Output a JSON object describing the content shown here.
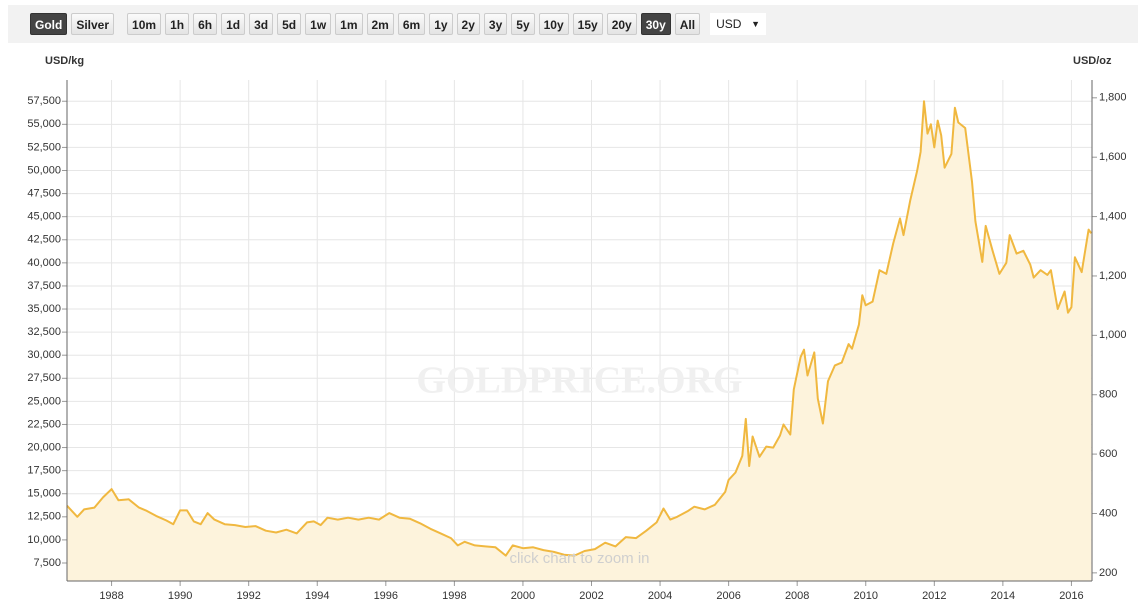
{
  "toolbar": {
    "buttons": [
      {
        "label": "Gold",
        "active": true
      },
      {
        "label": "Silver",
        "active": false
      },
      {
        "label": "10m",
        "active": false
      },
      {
        "label": "1h",
        "active": false
      },
      {
        "label": "6h",
        "active": false
      },
      {
        "label": "1d",
        "active": false
      },
      {
        "label": "3d",
        "active": false
      },
      {
        "label": "5d",
        "active": false
      },
      {
        "label": "1w",
        "active": false
      },
      {
        "label": "1m",
        "active": false
      },
      {
        "label": "2m",
        "active": false
      },
      {
        "label": "6m",
        "active": false
      },
      {
        "label": "1y",
        "active": false
      },
      {
        "label": "2y",
        "active": false
      },
      {
        "label": "3y",
        "active": false
      },
      {
        "label": "5y",
        "active": false
      },
      {
        "label": "10y",
        "active": false
      },
      {
        "label": "15y",
        "active": false
      },
      {
        "label": "20y",
        "active": false
      },
      {
        "label": "30y",
        "active": true
      },
      {
        "label": "All",
        "active": false
      }
    ],
    "currency": "USD"
  },
  "chart_data": {
    "type": "line",
    "ylabel": "USD/kg",
    "y2label": "USD/oz",
    "watermark": "GOLDPRICE.ORG",
    "annotation": "click chart to zoom in",
    "color": "#f0b840",
    "fill": "#fdf3dc",
    "grid": true,
    "xlim": [
      1986.7,
      2016.6
    ],
    "xticks": [
      1988,
      1990,
      1992,
      1994,
      1996,
      1998,
      2000,
      2002,
      2004,
      2006,
      2008,
      2010,
      2012,
      2014,
      2016
    ],
    "ylim": [
      5550,
      59800
    ],
    "yticks": [
      {
        "value": 7500,
        "label": "7,500"
      },
      {
        "value": 10000,
        "label": "10,000"
      },
      {
        "value": 12500,
        "label": "12,500"
      },
      {
        "value": 15000,
        "label": "15,000"
      },
      {
        "value": 17500,
        "label": "17,500"
      },
      {
        "value": 20000,
        "label": "20,000"
      },
      {
        "value": 22500,
        "label": "22,500"
      },
      {
        "value": 25000,
        "label": "25,000"
      },
      {
        "value": 27500,
        "label": "27,500"
      },
      {
        "value": 30000,
        "label": "30,000"
      },
      {
        "value": 32500,
        "label": "32,500"
      },
      {
        "value": 35000,
        "label": "35,000"
      },
      {
        "value": 37500,
        "label": "37,500"
      },
      {
        "value": 40000,
        "label": "40,000"
      },
      {
        "value": 42500,
        "label": "42,500"
      },
      {
        "value": 45000,
        "label": "45,000"
      },
      {
        "value": 47500,
        "label": "47,500"
      },
      {
        "value": 50000,
        "label": "50,000"
      },
      {
        "value": 52500,
        "label": "52,500"
      },
      {
        "value": 55000,
        "label": "55,000"
      },
      {
        "value": 57500,
        "label": "57,500"
      }
    ],
    "y2lim": [
      172.6,
      1860
    ],
    "y2ticks": [
      200,
      400,
      600,
      800,
      {
        "value": 1000,
        "label": "1,000"
      },
      {
        "value": 1200,
        "label": "1,200"
      },
      {
        "value": 1400,
        "label": "1,400"
      },
      {
        "value": 1600,
        "label": "1,600"
      },
      {
        "value": 1800,
        "label": "1,800"
      }
    ],
    "x": [
      1986.7,
      1987.0,
      1987.2,
      1987.5,
      1987.75,
      1988.0,
      1988.2,
      1988.5,
      1988.8,
      1989.0,
      1989.3,
      1989.6,
      1989.8,
      1990.0,
      1990.2,
      1990.4,
      1990.6,
      1990.8,
      1991.0,
      1991.3,
      1991.6,
      1991.9,
      1992.2,
      1992.5,
      1992.8,
      1993.1,
      1993.4,
      1993.7,
      1993.9,
      1994.1,
      1994.3,
      1994.6,
      1994.9,
      1995.2,
      1995.5,
      1995.8,
      1996.1,
      1996.4,
      1996.7,
      1997.0,
      1997.3,
      1997.6,
      1997.9,
      1998.1,
      1998.3,
      1998.6,
      1998.9,
      1999.2,
      1999.5,
      1999.7,
      2000.0,
      2000.3,
      2000.6,
      2000.9,
      2001.2,
      2001.5,
      2001.8,
      2002.1,
      2002.4,
      2002.7,
      2003.0,
      2003.3,
      2003.6,
      2003.9,
      2004.1,
      2004.3,
      2004.5,
      2004.8,
      2005.0,
      2005.3,
      2005.6,
      2005.9,
      2006.0,
      2006.2,
      2006.4,
      2006.5,
      2006.6,
      2006.7,
      2006.9,
      2007.1,
      2007.3,
      2007.5,
      2007.6,
      2007.8,
      2007.9,
      2008.1,
      2008.2,
      2008.3,
      2008.5,
      2008.6,
      2008.75,
      2008.9,
      2009.1,
      2009.3,
      2009.5,
      2009.6,
      2009.8,
      2009.9,
      2010.0,
      2010.2,
      2010.4,
      2010.6,
      2010.8,
      2011.0,
      2011.1,
      2011.3,
      2011.5,
      2011.6,
      2011.7,
      2011.8,
      2011.9,
      2012.0,
      2012.1,
      2012.2,
      2012.3,
      2012.5,
      2012.6,
      2012.7,
      2012.9,
      2013.1,
      2013.2,
      2013.4,
      2013.5,
      2013.7,
      2013.9,
      2014.1,
      2014.2,
      2014.4,
      2014.6,
      2014.8,
      2014.9,
      2015.1,
      2015.3,
      2015.4,
      2015.6,
      2015.8,
      2015.9,
      2016.0,
      2016.1,
      2016.3,
      2016.5,
      2016.58
    ],
    "values": [
      13700,
      12500,
      13300,
      13500,
      14600,
      15500,
      14300,
      14400,
      13500,
      13200,
      12600,
      12100,
      11700,
      13200,
      13200,
      12000,
      11700,
      12900,
      12200,
      11700,
      11600,
      11400,
      11500,
      11000,
      10800,
      11100,
      10700,
      11900,
      12000,
      11600,
      12400,
      12200,
      12400,
      12200,
      12400,
      12200,
      12900,
      12400,
      12300,
      11800,
      11200,
      10700,
      10200,
      9400,
      9800,
      9400,
      9300,
      9200,
      8300,
      9400,
      9100,
      9200,
      8900,
      8700,
      8400,
      8300,
      8800,
      9000,
      9700,
      9300,
      10300,
      10200,
      11000,
      11900,
      13400,
      12200,
      12500,
      13100,
      13600,
      13300,
      13800,
      15200,
      16500,
      17300,
      19100,
      23100,
      18000,
      21200,
      19000,
      20100,
      20000,
      21300,
      22500,
      21400,
      26300,
      29800,
      30600,
      27800,
      30300,
      25300,
      22600,
      27200,
      28900,
      29200,
      31200,
      30700,
      33300,
      36500,
      35400,
      35800,
      39200,
      38800,
      42100,
      44800,
      43000,
      46800,
      50000,
      52000,
      57500,
      54000,
      55000,
      52500,
      55400,
      53800,
      50300,
      51800,
      56800,
      55200,
      54600,
      48800,
      44500,
      40100,
      44000,
      41300,
      38800,
      40000,
      43000,
      41000,
      41300,
      39800,
      38400,
      39200,
      38700,
      39200,
      35000,
      36900,
      34600,
      35200,
      40600,
      39000,
      43600,
      43200
    ]
  }
}
